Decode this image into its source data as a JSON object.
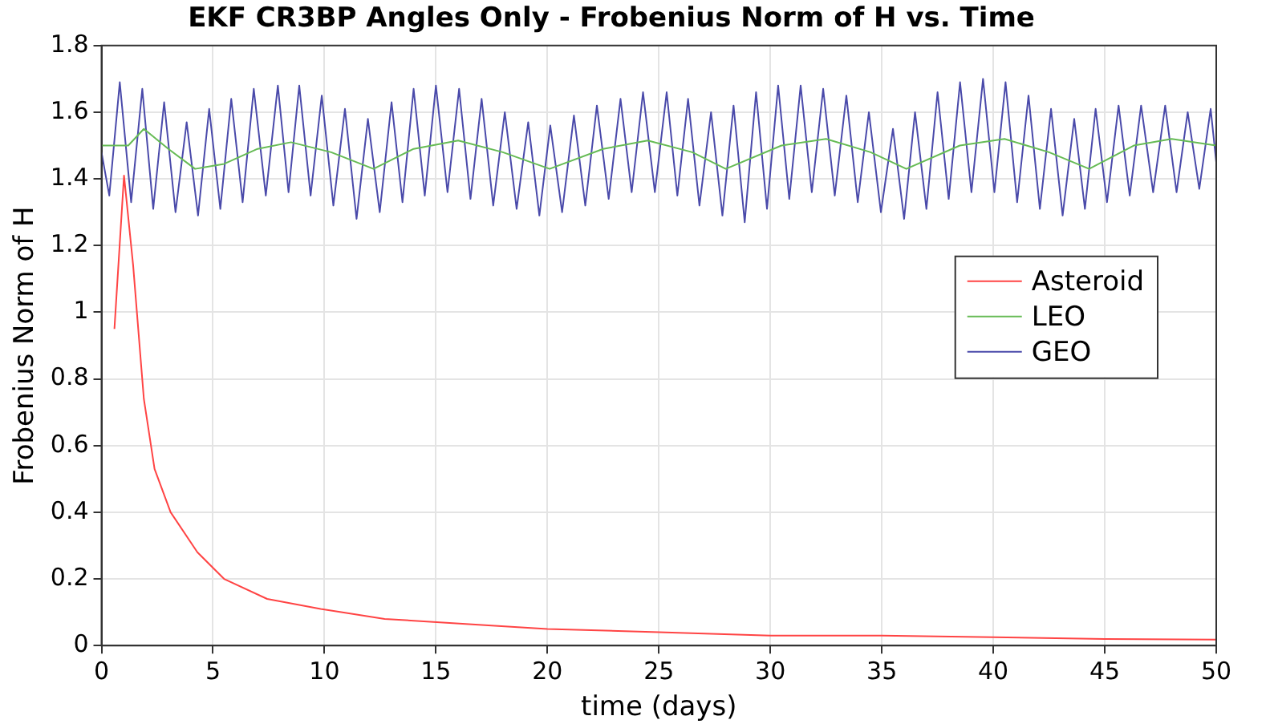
{
  "chart_data": {
    "type": "line",
    "title": "EKF CR3BP Angles Only - Frobenius Norm of H vs. Time",
    "xlabel": "time (days)",
    "ylabel": "Frobenius Norm of H",
    "xlim": [
      0,
      50
    ],
    "xticks": [
      0,
      5,
      10,
      15,
      20,
      25,
      30,
      35,
      40,
      45,
      50
    ],
    "ylim": [
      0,
      1.8
    ],
    "yticks": [
      0,
      0.2,
      0.4,
      0.6,
      0.8,
      1,
      1.2,
      1.4,
      1.6,
      1.8
    ],
    "grid": true,
    "legend": "right",
    "marker": "none",
    "line_style": "solid",
    "series": [
      {
        "name": "Asteroid",
        "color": "#ff4444",
        "x": [
          0.58,
          1.01,
          1.42,
          1.9,
          2.38,
          3.1,
          4.3,
          5.5,
          7.43,
          9.83,
          12.7,
          17.5,
          20,
          25,
          30,
          35,
          40,
          45,
          50
        ],
        "values": [
          0.95,
          1.41,
          1.14,
          0.74,
          0.53,
          0.4,
          0.28,
          0.2,
          0.14,
          0.11,
          0.08,
          0.06,
          0.05,
          0.04,
          0.03,
          0.03,
          0.025,
          0.02,
          0.018
        ]
      },
      {
        "name": "LEO",
        "color": "#66bb55",
        "x": [
          0,
          1.2,
          1.9,
          3,
          4.2,
          5.5,
          7,
          8.5,
          10.3,
          12.2,
          14,
          16,
          18,
          20.1,
          22.5,
          24.5,
          26.5,
          28,
          30.5,
          32.5,
          34.5,
          36.1,
          38.5,
          40.5,
          42.5,
          44.3,
          46.3,
          48,
          50
        ],
        "values": [
          1.5,
          1.5,
          1.55,
          1.49,
          1.43,
          1.445,
          1.49,
          1.51,
          1.48,
          1.43,
          1.49,
          1.515,
          1.48,
          1.43,
          1.49,
          1.515,
          1.48,
          1.43,
          1.5,
          1.52,
          1.48,
          1.43,
          1.5,
          1.52,
          1.48,
          1.43,
          1.5,
          1.52,
          1.5
        ]
      },
      {
        "name": "GEO",
        "color": "#4a4aaa",
        "x": [
          0,
          0.35,
          0.82,
          1.33,
          1.83,
          2.32,
          2.81,
          3.32,
          3.82,
          4.33,
          4.83,
          5.33,
          5.82,
          6.33,
          6.83,
          7.37,
          7.91,
          8.39,
          8.87,
          9.38,
          9.88,
          10.4,
          10.92,
          11.44,
          11.95,
          12.48,
          13.01,
          13.5,
          14.0,
          14.5,
          15.0,
          15.52,
          16.04,
          16.55,
          17.05,
          17.57,
          18.09,
          18.62,
          19.14,
          19.64,
          20.13,
          20.66,
          21.19,
          21.7,
          22.22,
          22.75,
          23.28,
          23.78,
          24.29,
          24.82,
          25.35,
          25.83,
          26.31,
          26.82,
          27.34,
          27.85,
          28.35,
          28.85,
          29.36,
          29.85,
          30.35,
          30.85,
          31.36,
          31.86,
          32.37,
          32.89,
          33.41,
          33.92,
          34.42,
          34.96,
          35.5,
          36.0,
          36.49,
          37.0,
          37.5,
          38.0,
          38.51,
          39.02,
          39.54,
          40.05,
          40.55,
          41.07,
          41.58,
          42.09,
          42.59,
          43.11,
          43.63,
          44.11,
          44.59,
          45.1,
          45.62,
          46.12,
          46.63,
          47.17,
          47.71,
          48.22,
          48.72,
          49.24,
          49.75,
          50
        ],
        "values": [
          1.48,
          1.35,
          1.69,
          1.33,
          1.67,
          1.31,
          1.63,
          1.3,
          1.57,
          1.29,
          1.61,
          1.31,
          1.64,
          1.33,
          1.67,
          1.35,
          1.68,
          1.36,
          1.68,
          1.35,
          1.65,
          1.32,
          1.61,
          1.28,
          1.58,
          1.3,
          1.63,
          1.33,
          1.67,
          1.35,
          1.68,
          1.36,
          1.67,
          1.34,
          1.64,
          1.32,
          1.6,
          1.31,
          1.57,
          1.29,
          1.56,
          1.3,
          1.59,
          1.32,
          1.62,
          1.34,
          1.64,
          1.36,
          1.66,
          1.36,
          1.66,
          1.35,
          1.64,
          1.32,
          1.6,
          1.29,
          1.62,
          1.27,
          1.66,
          1.31,
          1.68,
          1.34,
          1.68,
          1.36,
          1.67,
          1.35,
          1.65,
          1.33,
          1.6,
          1.3,
          1.55,
          1.28,
          1.6,
          1.31,
          1.66,
          1.34,
          1.69,
          1.36,
          1.7,
          1.36,
          1.69,
          1.33,
          1.65,
          1.31,
          1.61,
          1.29,
          1.58,
          1.31,
          1.61,
          1.33,
          1.62,
          1.35,
          1.62,
          1.36,
          1.62,
          1.36,
          1.6,
          1.37,
          1.61,
          1.45
        ]
      }
    ]
  }
}
